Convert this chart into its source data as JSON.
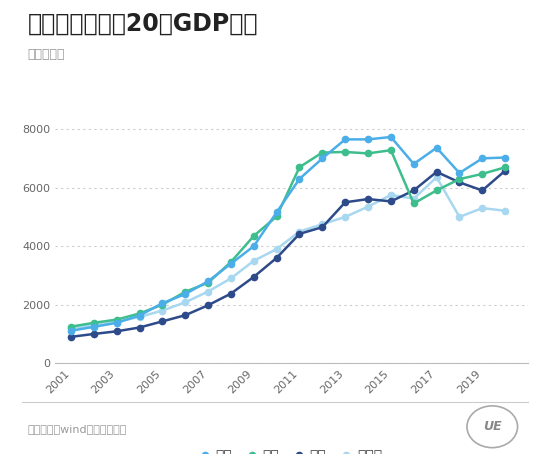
{
  "title": "东北四大城市近20年GDP走势",
  "subtitle": "单位：亿元",
  "source": "数据来源：wind、各市统计局",
  "years": [
    2001,
    2002,
    2003,
    2004,
    2005,
    2006,
    2007,
    2008,
    2009,
    2010,
    2011,
    2012,
    2013,
    2014,
    2015,
    2016,
    2017,
    2018,
    2019,
    2020
  ],
  "dalian": [
    1110,
    1243,
    1380,
    1630,
    2050,
    2362,
    2800,
    3401,
    4000,
    5158,
    6300,
    7000,
    7650,
    7650,
    7731,
    6810,
    7363,
    6500,
    7001,
    7030
  ],
  "shenyang": [
    1250,
    1380,
    1490,
    1700,
    2000,
    2440,
    2750,
    3460,
    4350,
    5015,
    6700,
    7200,
    7220,
    7170,
    7281,
    5460,
    5906,
    6292,
    6470,
    6695
  ],
  "changchun": [
    900,
    1000,
    1090,
    1220,
    1430,
    1640,
    1980,
    2380,
    2950,
    3600,
    4420,
    4650,
    5500,
    5610,
    5530,
    5905,
    6539,
    6180,
    5904,
    6580
  ],
  "harbin": [
    1200,
    1300,
    1420,
    1580,
    1800,
    2080,
    2450,
    2900,
    3500,
    3900,
    4500,
    4750,
    5000,
    5350,
    5751,
    5625,
    6355,
    5000,
    5300,
    5210
  ],
  "dalian_color": "#4baee8",
  "shenyang_color": "#3dbe8c",
  "changchun_color": "#2d4a8a",
  "harbin_color": "#a8d8f0",
  "background_color": "#ffffff",
  "grid_color": "#cccccc",
  "title_fontsize": 17,
  "subtitle_fontsize": 9,
  "tick_fontsize": 8,
  "legend_fontsize": 10,
  "source_fontsize": 8,
  "ylim": [
    0,
    9000
  ],
  "yticks": [
    0,
    2000,
    4000,
    6000,
    8000
  ],
  "xticks": [
    2001,
    2003,
    2005,
    2007,
    2009,
    2011,
    2013,
    2015,
    2017,
    2019
  ]
}
